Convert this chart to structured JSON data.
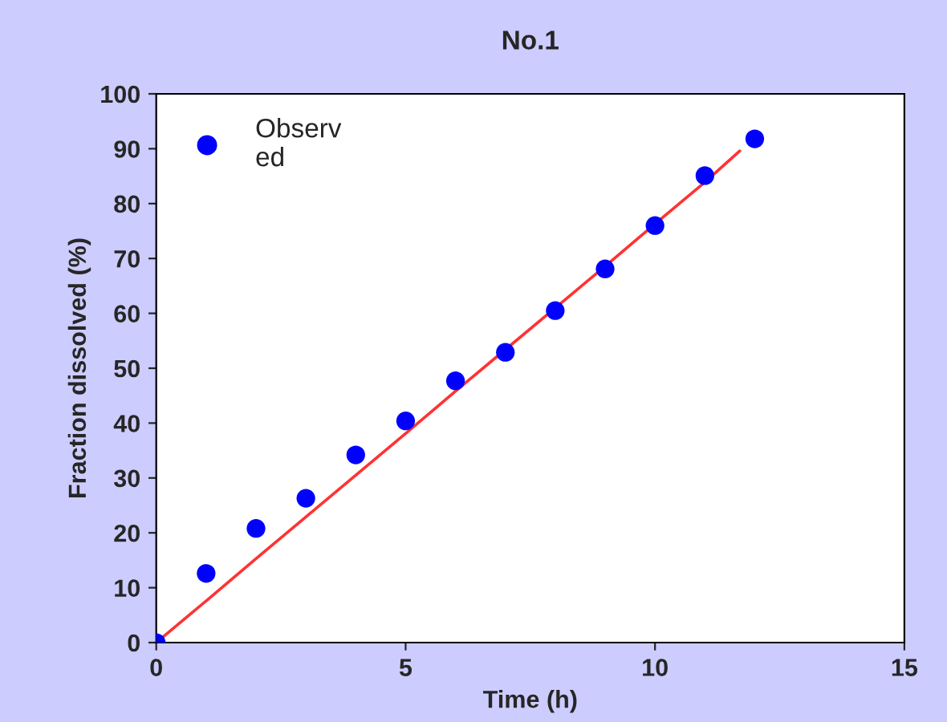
{
  "chart_data": {
    "type": "scatter",
    "title": "No.1",
    "xlabel": "Time (h)",
    "ylabel": "Fraction dissolved (%)",
    "x": [
      0,
      1,
      2,
      3,
      4,
      5,
      6,
      7,
      8,
      9,
      10,
      11,
      12
    ],
    "series": [
      {
        "name": "Observ\ned",
        "color": "#0000ff",
        "marker": "circle",
        "values": [
          0,
          12.6,
          20.8,
          26.3,
          34.2,
          40.4,
          47.7,
          52.9,
          60.5,
          68.1,
          76.0,
          85.1,
          91.8
        ]
      },
      {
        "type": "line",
        "x": [
          0,
          1,
          2,
          3,
          4,
          5,
          6,
          7,
          8,
          9,
          10,
          11,
          11.7
        ],
        "color": "#ff3333",
        "marker": "none",
        "line_style": "solid",
        "values": [
          0,
          7.6,
          15.3,
          22.9,
          30.5,
          38.1,
          45.8,
          53.4,
          61.0,
          68.6,
          76.3,
          83.9,
          89.6
        ]
      }
    ],
    "xlim": [
      0,
      15
    ],
    "xticks": [
      0,
      5,
      10,
      15
    ],
    "ylim": [
      0,
      100
    ],
    "yticks": [
      0,
      10,
      20,
      30,
      40,
      50,
      60,
      70,
      80,
      90,
      100
    ],
    "grid": false,
    "legend": "top left"
  }
}
